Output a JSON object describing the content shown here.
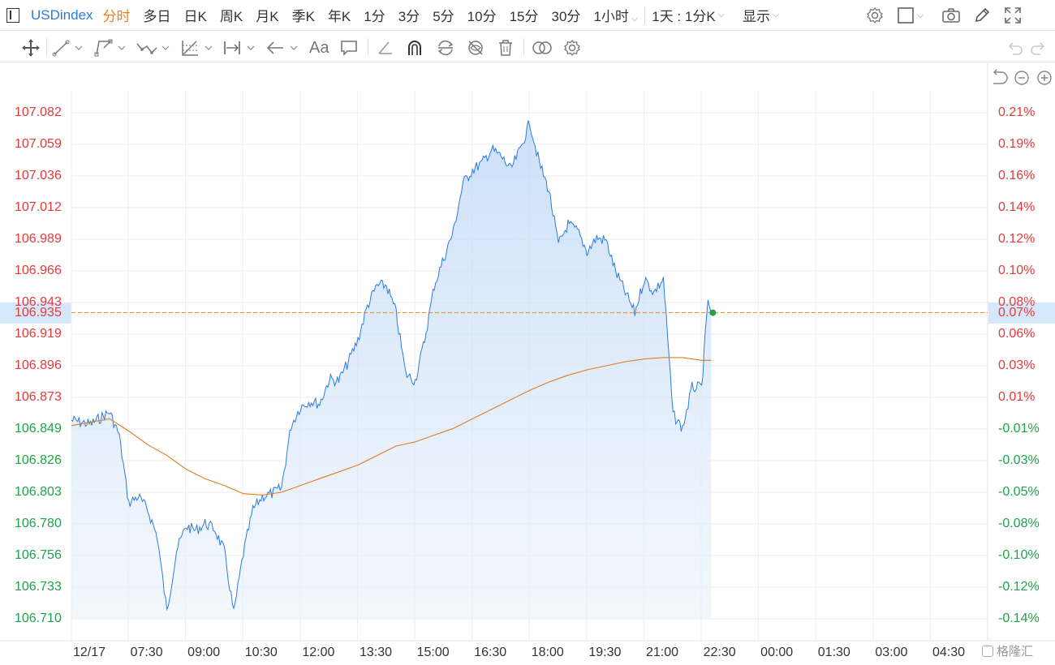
{
  "toolbar": {
    "symbol": "USDindex",
    "periods": [
      "分时",
      "多日",
      "日K",
      "周K",
      "月K",
      "季K",
      "年K",
      "1分",
      "3分",
      "5分",
      "10分",
      "15分",
      "30分",
      "1小时"
    ],
    "active_period": "分时",
    "range_select": "1天 : 1分K",
    "display_select": "显示",
    "icons": [
      "settings-icon",
      "square-style-icon",
      "camera-icon",
      "pen-icon",
      "fullscreen-icon"
    ]
  },
  "drawing_tools": {
    "icons": [
      "move-crosshair-icon",
      "trend-line-icon",
      "polyline-icon",
      "wave-icon",
      "fib-tool-icon",
      "measure-icon",
      "arrow-icon",
      "text-icon",
      "comment-icon",
      "angle-icon",
      "magnet-icon",
      "sync-icon",
      "hide-icon",
      "trash-icon",
      "overlay-icon",
      "tool-settings-icon",
      "undo-icon",
      "redo-icon"
    ],
    "text_tool_label": "Aa"
  },
  "zoom_controls": [
    "reset-icon",
    "zoom-out-icon",
    "zoom-in-icon"
  ],
  "chart_data": {
    "type": "line",
    "x_tick_labels": [
      "12/17",
      "07:30",
      "09:00",
      "10:30",
      "12:00",
      "13:30",
      "15:00",
      "16:30",
      "18:00",
      "19:30",
      "21:00",
      "22:30",
      "00:00",
      "01:30",
      "03:00",
      "04:30"
    ],
    "y_left_ticks": [
      "107.082",
      "107.059",
      "107.036",
      "107.012",
      "106.989",
      "106.966",
      "106.943",
      "106.919",
      "106.896",
      "106.873",
      "106.849",
      "106.826",
      "106.803",
      "106.780",
      "106.756",
      "106.733",
      "106.710"
    ],
    "y_right_ticks": [
      "0.21%",
      "0.19%",
      "0.16%",
      "0.14%",
      "0.12%",
      "0.10%",
      "0.08%",
      "0.06%",
      "0.03%",
      "0.01%",
      "-0.01%",
      "-0.03%",
      "-0.05%",
      "-0.08%",
      "-0.10%",
      "-0.12%",
      "-0.14%"
    ],
    "ylim": [
      106.71,
      107.082
    ],
    "current_price": "106.935",
    "current_pct": "0.07%",
    "series": [
      {
        "color": "#2b7be0",
        "points": [
          [
            "12/17",
            106.856
          ],
          [
            "06:30",
            106.853
          ],
          [
            "07:00",
            106.862
          ],
          [
            "07:15",
            106.845
          ],
          [
            "07:30",
            106.795
          ],
          [
            "07:45",
            106.8
          ],
          [
            "08:00",
            106.79
          ],
          [
            "08:15",
            106.77
          ],
          [
            "08:30",
            106.715
          ],
          [
            "08:45",
            106.76
          ],
          [
            "09:00",
            106.778
          ],
          [
            "09:15",
            106.775
          ],
          [
            "09:30",
            106.78
          ],
          [
            "09:45",
            106.776
          ],
          [
            "10:00",
            106.76
          ],
          [
            "10:15",
            106.714
          ],
          [
            "10:30",
            106.758
          ],
          [
            "10:45",
            106.79
          ],
          [
            "11:00",
            106.8
          ],
          [
            "11:15",
            106.802
          ],
          [
            "11:30",
            106.806
          ],
          [
            "11:45",
            106.852
          ],
          [
            "12:00",
            106.866
          ],
          [
            "12:15",
            106.87
          ],
          [
            "12:30",
            106.868
          ],
          [
            "12:45",
            106.886
          ],
          [
            "13:00",
            106.885
          ],
          [
            "13:15",
            106.899
          ],
          [
            "13:30",
            106.915
          ],
          [
            "13:45",
            106.94
          ],
          [
            "14:00",
            106.955
          ],
          [
            "14:15",
            106.955
          ],
          [
            "14:30",
            106.935
          ],
          [
            "14:45",
            106.89
          ],
          [
            "15:00",
            106.885
          ],
          [
            "15:15",
            106.915
          ],
          [
            "15:30",
            106.955
          ],
          [
            "15:45",
            106.975
          ],
          [
            "16:00",
            106.995
          ],
          [
            "16:15",
            107.03
          ],
          [
            "16:30",
            107.04
          ],
          [
            "16:45",
            107.045
          ],
          [
            "17:00",
            107.055
          ],
          [
            "17:15",
            107.05
          ],
          [
            "17:30",
            107.04
          ],
          [
            "17:45",
            107.055
          ],
          [
            "18:00",
            107.075
          ],
          [
            "18:15",
            107.045
          ],
          [
            "18:30",
            107.025
          ],
          [
            "18:45",
            106.985
          ],
          [
            "19:00",
            107.0
          ],
          [
            "19:15",
            106.995
          ],
          [
            "19:30",
            106.98
          ],
          [
            "19:45",
            106.99
          ],
          [
            "20:00",
            106.988
          ],
          [
            "20:15",
            106.965
          ],
          [
            "20:30",
            106.95
          ],
          [
            "20:45",
            106.935
          ],
          [
            "21:00",
            106.96
          ],
          [
            "21:15",
            106.95
          ],
          [
            "21:30",
            106.96
          ],
          [
            "21:45",
            106.86
          ],
          [
            "22:00",
            106.85
          ],
          [
            "22:15",
            106.88
          ],
          [
            "22:30",
            106.88
          ],
          [
            "22:40",
            106.945
          ],
          [
            "22:45",
            106.935
          ]
        ]
      },
      {
        "color": "#e07b22",
        "points": [
          [
            "12/17",
            106.852
          ],
          [
            "07:00",
            106.857
          ],
          [
            "07:30",
            106.848
          ],
          [
            "08:00",
            106.838
          ],
          [
            "08:30",
            106.83
          ],
          [
            "09:00",
            106.82
          ],
          [
            "09:30",
            106.813
          ],
          [
            "10:00",
            106.808
          ],
          [
            "10:30",
            106.802
          ],
          [
            "11:00",
            106.801
          ],
          [
            "11:30",
            106.803
          ],
          [
            "12:00",
            106.808
          ],
          [
            "12:30",
            106.813
          ],
          [
            "13:00",
            106.818
          ],
          [
            "13:30",
            106.823
          ],
          [
            "14:00",
            106.83
          ],
          [
            "14:30",
            106.837
          ],
          [
            "15:00",
            106.84
          ],
          [
            "15:30",
            106.845
          ],
          [
            "16:00",
            106.85
          ],
          [
            "16:30",
            106.857
          ],
          [
            "17:00",
            106.864
          ],
          [
            "17:30",
            106.871
          ],
          [
            "18:00",
            106.878
          ],
          [
            "18:30",
            106.884
          ],
          [
            "19:00",
            106.889
          ],
          [
            "19:30",
            106.893
          ],
          [
            "20:00",
            106.896
          ],
          [
            "20:30",
            106.899
          ],
          [
            "21:00",
            106.901
          ],
          [
            "21:30",
            106.902
          ],
          [
            "22:00",
            106.902
          ],
          [
            "22:30",
            106.9
          ],
          [
            "22:45",
            106.9
          ]
        ]
      }
    ]
  },
  "watermark": "格隆汇",
  "colors": {
    "up": "#e43a3a",
    "down": "#1fa34a",
    "line": "#2b7be0",
    "avg": "#e07b22",
    "accent": "#f07c1a"
  }
}
